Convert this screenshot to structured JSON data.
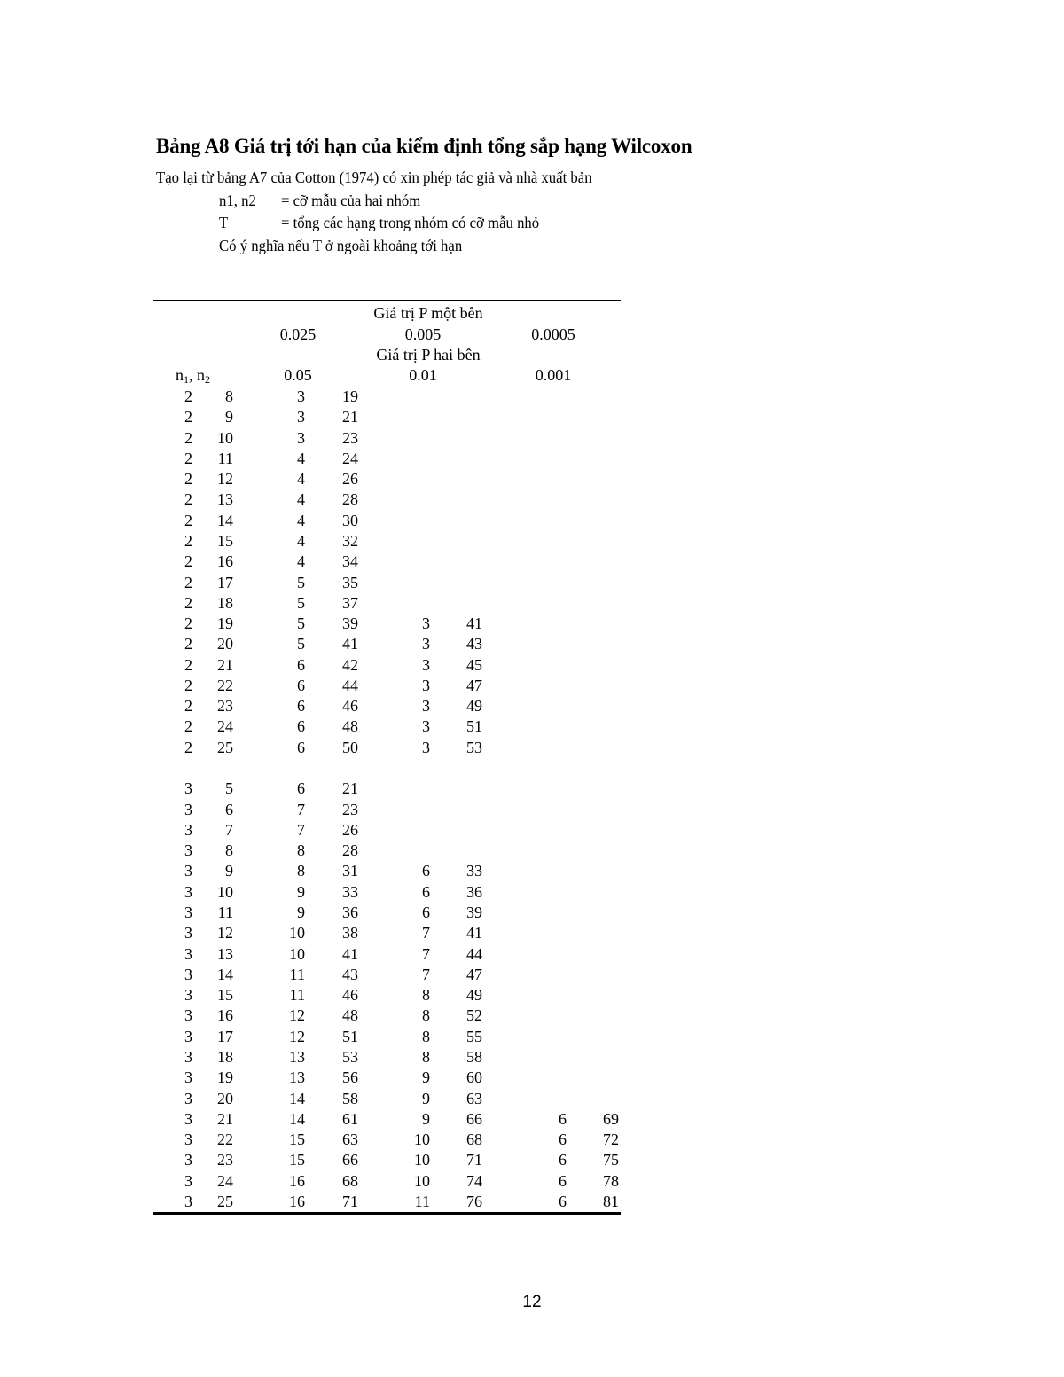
{
  "title": "Bảng A8 Giá trị tới hạn của kiểm định tổng sắp hạng Wilcoxon",
  "notes": {
    "source": "Tạo lại từ bảng A7 của Cotton (1974) có xin phép tác giả và nhà xuất bản",
    "n_label": "n1, n2",
    "n_def": "= cỡ mẫu của hai nhóm",
    "t_label": "T",
    "t_def": "= tổng các hạng trong nhóm có cỡ mẫu nhỏ",
    "significance": "Có ý nghĩa nếu T ở ngoài khoảng tới hạn"
  },
  "table": {
    "one_sided_label": "Giá trị P một bên",
    "one_sided": [
      "0.025",
      "0.005",
      "0.0005"
    ],
    "two_sided_label": "Giá trị P hai bên",
    "two_sided": [
      "0.05",
      "0.01",
      "0.001"
    ],
    "n_header_n": "n",
    "n_header_1": "1",
    "n_header_sep": ", n",
    "n_header_2": "2",
    "groups": [
      [
        [
          "2",
          "8",
          "3",
          "19",
          "",
          "",
          "",
          ""
        ],
        [
          "2",
          "9",
          "3",
          "21",
          "",
          "",
          "",
          ""
        ],
        [
          "2",
          "10",
          "3",
          "23",
          "",
          "",
          "",
          ""
        ],
        [
          "2",
          "11",
          "4",
          "24",
          "",
          "",
          "",
          ""
        ],
        [
          "2",
          "12",
          "4",
          "26",
          "",
          "",
          "",
          ""
        ],
        [
          "2",
          "13",
          "4",
          "28",
          "",
          "",
          "",
          ""
        ],
        [
          "2",
          "14",
          "4",
          "30",
          "",
          "",
          "",
          ""
        ],
        [
          "2",
          "15",
          "4",
          "32",
          "",
          "",
          "",
          ""
        ],
        [
          "2",
          "16",
          "4",
          "34",
          "",
          "",
          "",
          ""
        ],
        [
          "2",
          "17",
          "5",
          "35",
          "",
          "",
          "",
          ""
        ],
        [
          "2",
          "18",
          "5",
          "37",
          "",
          "",
          "",
          ""
        ],
        [
          "2",
          "19",
          "5",
          "39",
          "3",
          "41",
          "",
          ""
        ],
        [
          "2",
          "20",
          "5",
          "41",
          "3",
          "43",
          "",
          ""
        ],
        [
          "2",
          "21",
          "6",
          "42",
          "3",
          "45",
          "",
          ""
        ],
        [
          "2",
          "22",
          "6",
          "44",
          "3",
          "47",
          "",
          ""
        ],
        [
          "2",
          "23",
          "6",
          "46",
          "3",
          "49",
          "",
          ""
        ],
        [
          "2",
          "24",
          "6",
          "48",
          "3",
          "51",
          "",
          ""
        ],
        [
          "2",
          "25",
          "6",
          "50",
          "3",
          "53",
          "",
          ""
        ]
      ],
      [
        [
          "3",
          "5",
          "6",
          "21",
          "",
          "",
          "",
          ""
        ],
        [
          "3",
          "6",
          "7",
          "23",
          "",
          "",
          "",
          ""
        ],
        [
          "3",
          "7",
          "7",
          "26",
          "",
          "",
          "",
          ""
        ],
        [
          "3",
          "8",
          "8",
          "28",
          "",
          "",
          "",
          ""
        ],
        [
          "3",
          "9",
          "8",
          "31",
          "6",
          "33",
          "",
          ""
        ],
        [
          "3",
          "10",
          "9",
          "33",
          "6",
          "36",
          "",
          ""
        ],
        [
          "3",
          "11",
          "9",
          "36",
          "6",
          "39",
          "",
          ""
        ],
        [
          "3",
          "12",
          "10",
          "38",
          "7",
          "41",
          "",
          ""
        ],
        [
          "3",
          "13",
          "10",
          "41",
          "7",
          "44",
          "",
          ""
        ],
        [
          "3",
          "14",
          "11",
          "43",
          "7",
          "47",
          "",
          ""
        ],
        [
          "3",
          "15",
          "11",
          "46",
          "8",
          "49",
          "",
          ""
        ],
        [
          "3",
          "16",
          "12",
          "48",
          "8",
          "52",
          "",
          ""
        ],
        [
          "3",
          "17",
          "12",
          "51",
          "8",
          "55",
          "",
          ""
        ],
        [
          "3",
          "18",
          "13",
          "53",
          "8",
          "58",
          "",
          ""
        ],
        [
          "3",
          "19",
          "13",
          "56",
          "9",
          "60",
          "",
          ""
        ],
        [
          "3",
          "20",
          "14",
          "58",
          "9",
          "63",
          "",
          ""
        ],
        [
          "3",
          "21",
          "14",
          "61",
          "9",
          "66",
          "6",
          "69"
        ],
        [
          "3",
          "22",
          "15",
          "63",
          "10",
          "68",
          "6",
          "72"
        ],
        [
          "3",
          "23",
          "15",
          "66",
          "10",
          "71",
          "6",
          "75"
        ],
        [
          "3",
          "24",
          "16",
          "68",
          "10",
          "74",
          "6",
          "78"
        ],
        [
          "3",
          "25",
          "16",
          "71",
          "11",
          "76",
          "6",
          "81"
        ]
      ]
    ]
  },
  "page_number": "12"
}
